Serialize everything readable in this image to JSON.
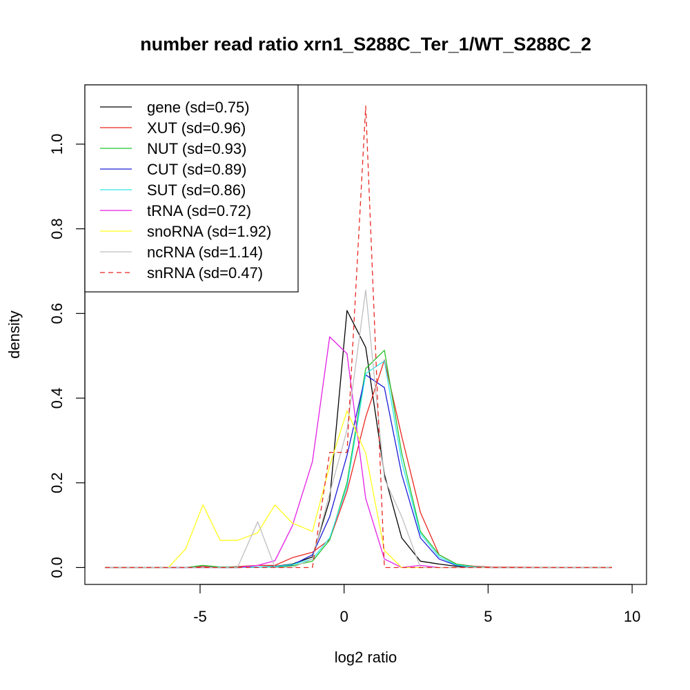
{
  "chart_data": {
    "type": "line",
    "title": "number read ratio xrn1_S288C_Ter_1/WT_S288C_2",
    "xlabel": "log2 ratio",
    "ylabel": "density",
    "xlim": [
      -9,
      10.5
    ],
    "ylim": [
      -0.04,
      1.14
    ],
    "x_ticks": [
      -5,
      0,
      5,
      10
    ],
    "x_tick_labels": [
      "-5",
      "0",
      "5",
      "10"
    ],
    "y_ticks": [
      0.0,
      0.2,
      0.4,
      0.6,
      0.8,
      1.0
    ],
    "y_tick_labels": [
      "0.0",
      "0.2",
      "0.4",
      "0.6",
      "0.8",
      "1.0"
    ],
    "grid": false,
    "legend_position": "top-left",
    "series": [
      {
        "name": "gene (sd=0.75)",
        "color": "#000000",
        "dash": false,
        "points": [
          [
            -8.3,
            0
          ],
          [
            -5.5,
            0
          ],
          [
            -4.9,
            0.002
          ],
          [
            -4.3,
            0
          ],
          [
            -3.7,
            0
          ],
          [
            -3.0,
            0.001
          ],
          [
            -2.4,
            0.003
          ],
          [
            -1.8,
            0.008
          ],
          [
            -1.1,
            0.025
          ],
          [
            -0.5,
            0.16
          ],
          [
            0.1,
            0.607
          ],
          [
            0.75,
            0.52
          ],
          [
            1.4,
            0.22
          ],
          [
            2.0,
            0.07
          ],
          [
            2.65,
            0.015
          ],
          [
            3.3,
            0.008
          ],
          [
            3.9,
            0.003
          ],
          [
            4.5,
            0.001
          ],
          [
            5.1,
            0
          ],
          [
            9.3,
            0
          ]
        ]
      },
      {
        "name": "XUT (sd=0.96)",
        "color": "#e8261f",
        "dash": false,
        "points": [
          [
            -8.3,
            0
          ],
          [
            -5.5,
            0
          ],
          [
            -4.9,
            0.002
          ],
          [
            -4.3,
            0
          ],
          [
            -3.7,
            0.002
          ],
          [
            -3.0,
            0.005
          ],
          [
            -2.4,
            0.005
          ],
          [
            -1.8,
            0.023
          ],
          [
            -1.1,
            0.036
          ],
          [
            -0.5,
            0.066
          ],
          [
            0.1,
            0.18
          ],
          [
            0.75,
            0.355
          ],
          [
            1.4,
            0.49
          ],
          [
            2.0,
            0.31
          ],
          [
            2.65,
            0.13
          ],
          [
            3.3,
            0.03
          ],
          [
            3.9,
            0.008
          ],
          [
            4.5,
            0.003
          ],
          [
            5.1,
            0.001
          ],
          [
            9.3,
            0
          ]
        ]
      },
      {
        "name": "NUT (sd=0.93)",
        "color": "#22c22a",
        "dash": false,
        "points": [
          [
            -8.3,
            0
          ],
          [
            -5.5,
            0
          ],
          [
            -4.9,
            0.005
          ],
          [
            -4.3,
            0.001
          ],
          [
            -3.7,
            0.001
          ],
          [
            -3.0,
            0.001
          ],
          [
            -2.4,
            0.001
          ],
          [
            -1.8,
            0.004
          ],
          [
            -1.1,
            0.015
          ],
          [
            -0.5,
            0.065
          ],
          [
            0.1,
            0.2
          ],
          [
            0.75,
            0.47
          ],
          [
            1.4,
            0.513
          ],
          [
            2.0,
            0.27
          ],
          [
            2.65,
            0.085
          ],
          [
            3.3,
            0.03
          ],
          [
            3.9,
            0.008
          ],
          [
            4.5,
            0.002
          ],
          [
            5.1,
            0
          ],
          [
            9.3,
            0
          ]
        ]
      },
      {
        "name": "CUT (sd=0.89)",
        "color": "#1a1ad6",
        "dash": false,
        "points": [
          [
            -8.3,
            0
          ],
          [
            -5.5,
            0
          ],
          [
            -4.9,
            0
          ],
          [
            -4.3,
            0
          ],
          [
            -3.7,
            0
          ],
          [
            -3.0,
            0.001
          ],
          [
            -2.4,
            0.002
          ],
          [
            -1.8,
            0.006
          ],
          [
            -1.1,
            0.03
          ],
          [
            -0.5,
            0.12
          ],
          [
            0.1,
            0.265
          ],
          [
            0.75,
            0.455
          ],
          [
            1.4,
            0.425
          ],
          [
            2.0,
            0.22
          ],
          [
            2.65,
            0.07
          ],
          [
            3.3,
            0.02
          ],
          [
            3.9,
            0.005
          ],
          [
            4.5,
            0.001
          ],
          [
            5.1,
            0
          ],
          [
            9.3,
            0
          ]
        ]
      },
      {
        "name": "SUT (sd=0.86)",
        "color": "#2ee8ee",
        "dash": false,
        "points": [
          [
            -8.3,
            0
          ],
          [
            -5.5,
            0
          ],
          [
            -4.9,
            0
          ],
          [
            -4.3,
            0
          ],
          [
            -3.7,
            0
          ],
          [
            -3.0,
            0.001
          ],
          [
            -2.4,
            0.002
          ],
          [
            -1.8,
            0.007
          ],
          [
            -1.1,
            0.02
          ],
          [
            -0.5,
            0.07
          ],
          [
            0.1,
            0.19
          ],
          [
            0.75,
            0.458
          ],
          [
            1.4,
            0.488
          ],
          [
            2.0,
            0.25
          ],
          [
            2.65,
            0.08
          ],
          [
            3.3,
            0.025
          ],
          [
            3.9,
            0.006
          ],
          [
            4.5,
            0.001
          ],
          [
            5.1,
            0
          ],
          [
            9.3,
            0
          ]
        ]
      },
      {
        "name": "tRNA (sd=0.72)",
        "color": "#e41ee4",
        "dash": false,
        "points": [
          [
            -8.3,
            0
          ],
          [
            -5.5,
            0
          ],
          [
            -4.9,
            0
          ],
          [
            -4.3,
            0
          ],
          [
            -3.7,
            0
          ],
          [
            -3.0,
            0.005
          ],
          [
            -2.4,
            0.016
          ],
          [
            -1.8,
            0.098
          ],
          [
            -1.1,
            0.25
          ],
          [
            -0.5,
            0.545
          ],
          [
            0.1,
            0.505
          ],
          [
            0.75,
            0.163
          ],
          [
            1.4,
            0.02
          ],
          [
            2.0,
            0
          ],
          [
            2.65,
            0.005
          ],
          [
            3.3,
            0
          ],
          [
            9.3,
            0
          ]
        ]
      },
      {
        "name": "snoRNA (sd=1.92)",
        "color": "#ffff1a",
        "dash": false,
        "points": [
          [
            -8.3,
            0
          ],
          [
            -6.1,
            0
          ],
          [
            -5.5,
            0.044
          ],
          [
            -4.9,
            0.148
          ],
          [
            -4.3,
            0.064
          ],
          [
            -3.7,
            0.064
          ],
          [
            -3.0,
            0.082
          ],
          [
            -2.4,
            0.148
          ],
          [
            -1.8,
            0.105
          ],
          [
            -1.1,
            0.085
          ],
          [
            -0.5,
            0.24
          ],
          [
            0.1,
            0.37
          ],
          [
            0.75,
            0.27
          ],
          [
            1.4,
            0.04
          ],
          [
            2.0,
            0
          ],
          [
            9.3,
            0
          ]
        ]
      },
      {
        "name": "ncRNA (sd=1.14)",
        "color": "#bebebe",
        "dash": false,
        "points": [
          [
            -8.3,
            0
          ],
          [
            -3.7,
            0
          ],
          [
            -3.0,
            0.108
          ],
          [
            -2.4,
            0
          ],
          [
            -1.8,
            0
          ],
          [
            -1.1,
            0.02
          ],
          [
            -0.5,
            0.175
          ],
          [
            0.1,
            0.325
          ],
          [
            0.75,
            0.655
          ],
          [
            1.4,
            0.21
          ],
          [
            2.0,
            0.12
          ],
          [
            2.65,
            0
          ],
          [
            9.3,
            0
          ]
        ]
      },
      {
        "name": "snRNA (sd=0.47)",
        "color": "#e8261f",
        "dash": true,
        "points": [
          [
            -8.3,
            0
          ],
          [
            -1.1,
            0
          ],
          [
            -1.1,
            0
          ],
          [
            -0.5,
            0.272
          ],
          [
            0.1,
            0.272
          ],
          [
            0.75,
            1.09
          ],
          [
            1.4,
            0
          ],
          [
            9.3,
            0
          ]
        ]
      }
    ]
  }
}
